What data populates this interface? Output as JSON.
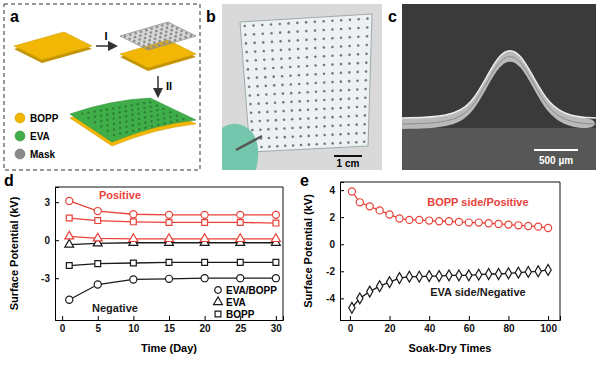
{
  "figure": {
    "panels": [
      {
        "label": "a",
        "steps": [
          "I",
          "II"
        ],
        "legend": [
          {
            "name": "BOPP",
            "color": "#f2b705"
          },
          {
            "name": "EVA",
            "color": "#3fae49"
          },
          {
            "name": "Mask",
            "color": "#8a8a8a"
          }
        ]
      },
      {
        "label": "b",
        "scale_bar": "1 cm"
      },
      {
        "label": "c",
        "scale_bar": "500 µm"
      }
    ]
  },
  "chart_data": [
    {
      "type": "line",
      "title": "d",
      "x_label": "Time (Day)",
      "y_label": "Surface Potential (kV)",
      "x": [
        1,
        5,
        10,
        15,
        20,
        25,
        30
      ],
      "xlim": [
        -1,
        31
      ],
      "xticks": [
        0,
        5,
        10,
        15,
        20,
        25,
        30
      ],
      "ylim": [
        -6.3,
        4.2
      ],
      "yticks": [
        -3,
        0,
        3
      ],
      "legend": "lower right",
      "annotations": [
        {
          "text": "Positive",
          "color": "#e8433a"
        },
        {
          "text": "Negative",
          "color": "#1a1a1a"
        }
      ],
      "series": [
        {
          "name": "EVA/BOPP",
          "color": "#1a1a1a",
          "marker": "circle",
          "values": [
            -4.7,
            -3.5,
            -3.1,
            -3.05,
            -3.0,
            -3.0,
            -3.0
          ]
        },
        {
          "name": "EVA/BOPP",
          "color": "#e8433a",
          "marker": "circle",
          "values": [
            3.1,
            2.3,
            2.05,
            2.0,
            2.0,
            2.0,
            2.0
          ]
        },
        {
          "name": "EVA",
          "color": "#1a1a1a",
          "marker": "triangle",
          "values": [
            -0.35,
            -0.25,
            -0.2,
            -0.2,
            -0.2,
            -0.2,
            -0.2
          ]
        },
        {
          "name": "EVA",
          "color": "#e8433a",
          "marker": "triangle",
          "values": [
            0.3,
            0.15,
            0.1,
            0.1,
            0.1,
            0.1,
            0.1
          ]
        },
        {
          "name": "BOPP",
          "color": "#1a1a1a",
          "marker": "square",
          "values": [
            -2.0,
            -1.85,
            -1.8,
            -1.75,
            -1.75,
            -1.75,
            -1.75
          ]
        },
        {
          "name": "BOPP",
          "color": "#e8433a",
          "marker": "square",
          "values": [
            1.75,
            1.55,
            1.45,
            1.4,
            1.4,
            1.4,
            1.35
          ]
        }
      ]
    },
    {
      "type": "line",
      "title": "e",
      "x_label": "Soak-Dry Times",
      "y_label": "Surface Potential (kV)",
      "x": [
        1,
        5,
        10,
        15,
        20,
        25,
        30,
        35,
        40,
        45,
        50,
        55,
        60,
        65,
        70,
        75,
        80,
        85,
        90,
        95,
        100
      ],
      "xlim": [
        -5,
        106
      ],
      "xticks": [
        0,
        20,
        40,
        60,
        80,
        100
      ],
      "ylim": [
        -5.6,
        4.6
      ],
      "yticks": [
        -4,
        -2,
        0,
        2,
        4
      ],
      "series": [
        {
          "name": "BOPP side/Positive",
          "color": "#e8433a",
          "marker": "circle",
          "values": [
            3.9,
            3.1,
            2.8,
            2.5,
            2.2,
            1.9,
            1.8,
            1.8,
            1.75,
            1.7,
            1.7,
            1.65,
            1.6,
            1.6,
            1.55,
            1.5,
            1.45,
            1.4,
            1.35,
            1.3,
            1.2
          ]
        },
        {
          "name": "EVA side/Negative",
          "color": "#1a1a1a",
          "marker": "diamond",
          "values": [
            -4.7,
            -4.0,
            -3.5,
            -3.1,
            -2.8,
            -2.5,
            -2.4,
            -2.4,
            -2.35,
            -2.35,
            -2.3,
            -2.3,
            -2.3,
            -2.25,
            -2.2,
            -2.2,
            -2.15,
            -2.1,
            -2.05,
            -2.0,
            -1.9
          ]
        }
      ]
    }
  ]
}
